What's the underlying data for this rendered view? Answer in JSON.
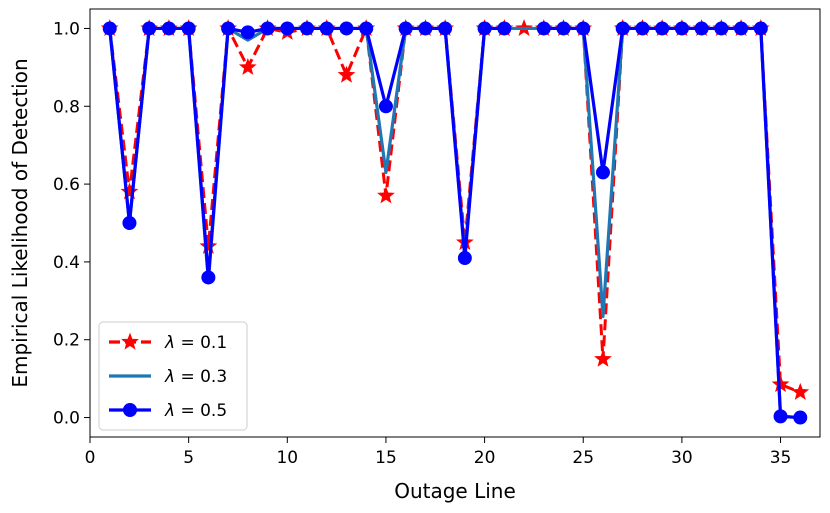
{
  "chart_data": {
    "type": "line",
    "title": "",
    "xlabel": "Outage Line",
    "ylabel": "Empirical Likelihood of Detection",
    "xlim": [
      0,
      37
    ],
    "ylim": [
      -0.05,
      1.05
    ],
    "xticks": [
      0,
      5,
      10,
      15,
      20,
      25,
      30,
      35
    ],
    "yticks": [
      0.0,
      0.2,
      0.4,
      0.6,
      0.8,
      1.0
    ],
    "xtick_labels": [
      "0",
      "5",
      "10",
      "15",
      "20",
      "25",
      "30",
      "35"
    ],
    "ytick_labels": [
      "0.0",
      "0.2",
      "0.4",
      "0.6",
      "0.8",
      "1.0"
    ],
    "grid": false,
    "legend_position": "lower-left",
    "x": [
      1,
      2,
      3,
      4,
      5,
      6,
      7,
      8,
      9,
      10,
      11,
      12,
      13,
      14,
      15,
      16,
      17,
      18,
      19,
      20,
      21,
      22,
      23,
      24,
      25,
      26,
      27,
      28,
      29,
      30,
      31,
      32,
      33,
      34,
      35,
      36
    ],
    "series": [
      {
        "name": "λ = 0.1",
        "legend_parts": [
          "λ",
          " = 0.1"
        ],
        "color": "#ff0000",
        "style": "dashed",
        "marker": "star",
        "values": [
          1.0,
          0.58,
          1.0,
          1.0,
          1.0,
          0.44,
          1.0,
          0.9,
          1.0,
          0.99,
          1.0,
          1.0,
          0.88,
          1.0,
          0.57,
          1.0,
          1.0,
          1.0,
          0.45,
          1.0,
          1.0,
          1.0,
          1.0,
          1.0,
          1.0,
          0.15,
          1.0,
          1.0,
          1.0,
          1.0,
          1.0,
          1.0,
          1.0,
          1.0,
          0.085,
          0.065
        ]
      },
      {
        "name": "λ = 0.3",
        "legend_parts": [
          "λ",
          " = 0.3"
        ],
        "color": "#1f77b4",
        "style": "solid",
        "marker": "none",
        "values": [
          1.0,
          0.5,
          1.0,
          1.0,
          1.0,
          0.35,
          1.0,
          0.97,
          1.0,
          1.0,
          1.0,
          1.0,
          1.0,
          1.0,
          0.63,
          1.0,
          1.0,
          1.0,
          0.42,
          1.0,
          1.0,
          1.0,
          1.0,
          1.0,
          1.0,
          0.26,
          1.0,
          1.0,
          1.0,
          1.0,
          1.0,
          1.0,
          1.0,
          1.0,
          0.003,
          0.0
        ]
      },
      {
        "name": "λ = 0.5",
        "legend_parts": [
          "λ",
          " = 0.5"
        ],
        "color": "#0000ff",
        "style": "solid",
        "marker": "circle",
        "values": [
          1.0,
          0.5,
          1.0,
          1.0,
          1.0,
          0.36,
          1.0,
          0.99,
          1.0,
          1.0,
          1.0,
          1.0,
          1.0,
          1.0,
          0.8,
          1.0,
          1.0,
          1.0,
          0.41,
          1.0,
          1.0,
          null,
          1.0,
          1.0,
          1.0,
          0.63,
          1.0,
          1.0,
          1.0,
          1.0,
          1.0,
          1.0,
          1.0,
          1.0,
          0.003,
          0.0
        ]
      }
    ]
  }
}
